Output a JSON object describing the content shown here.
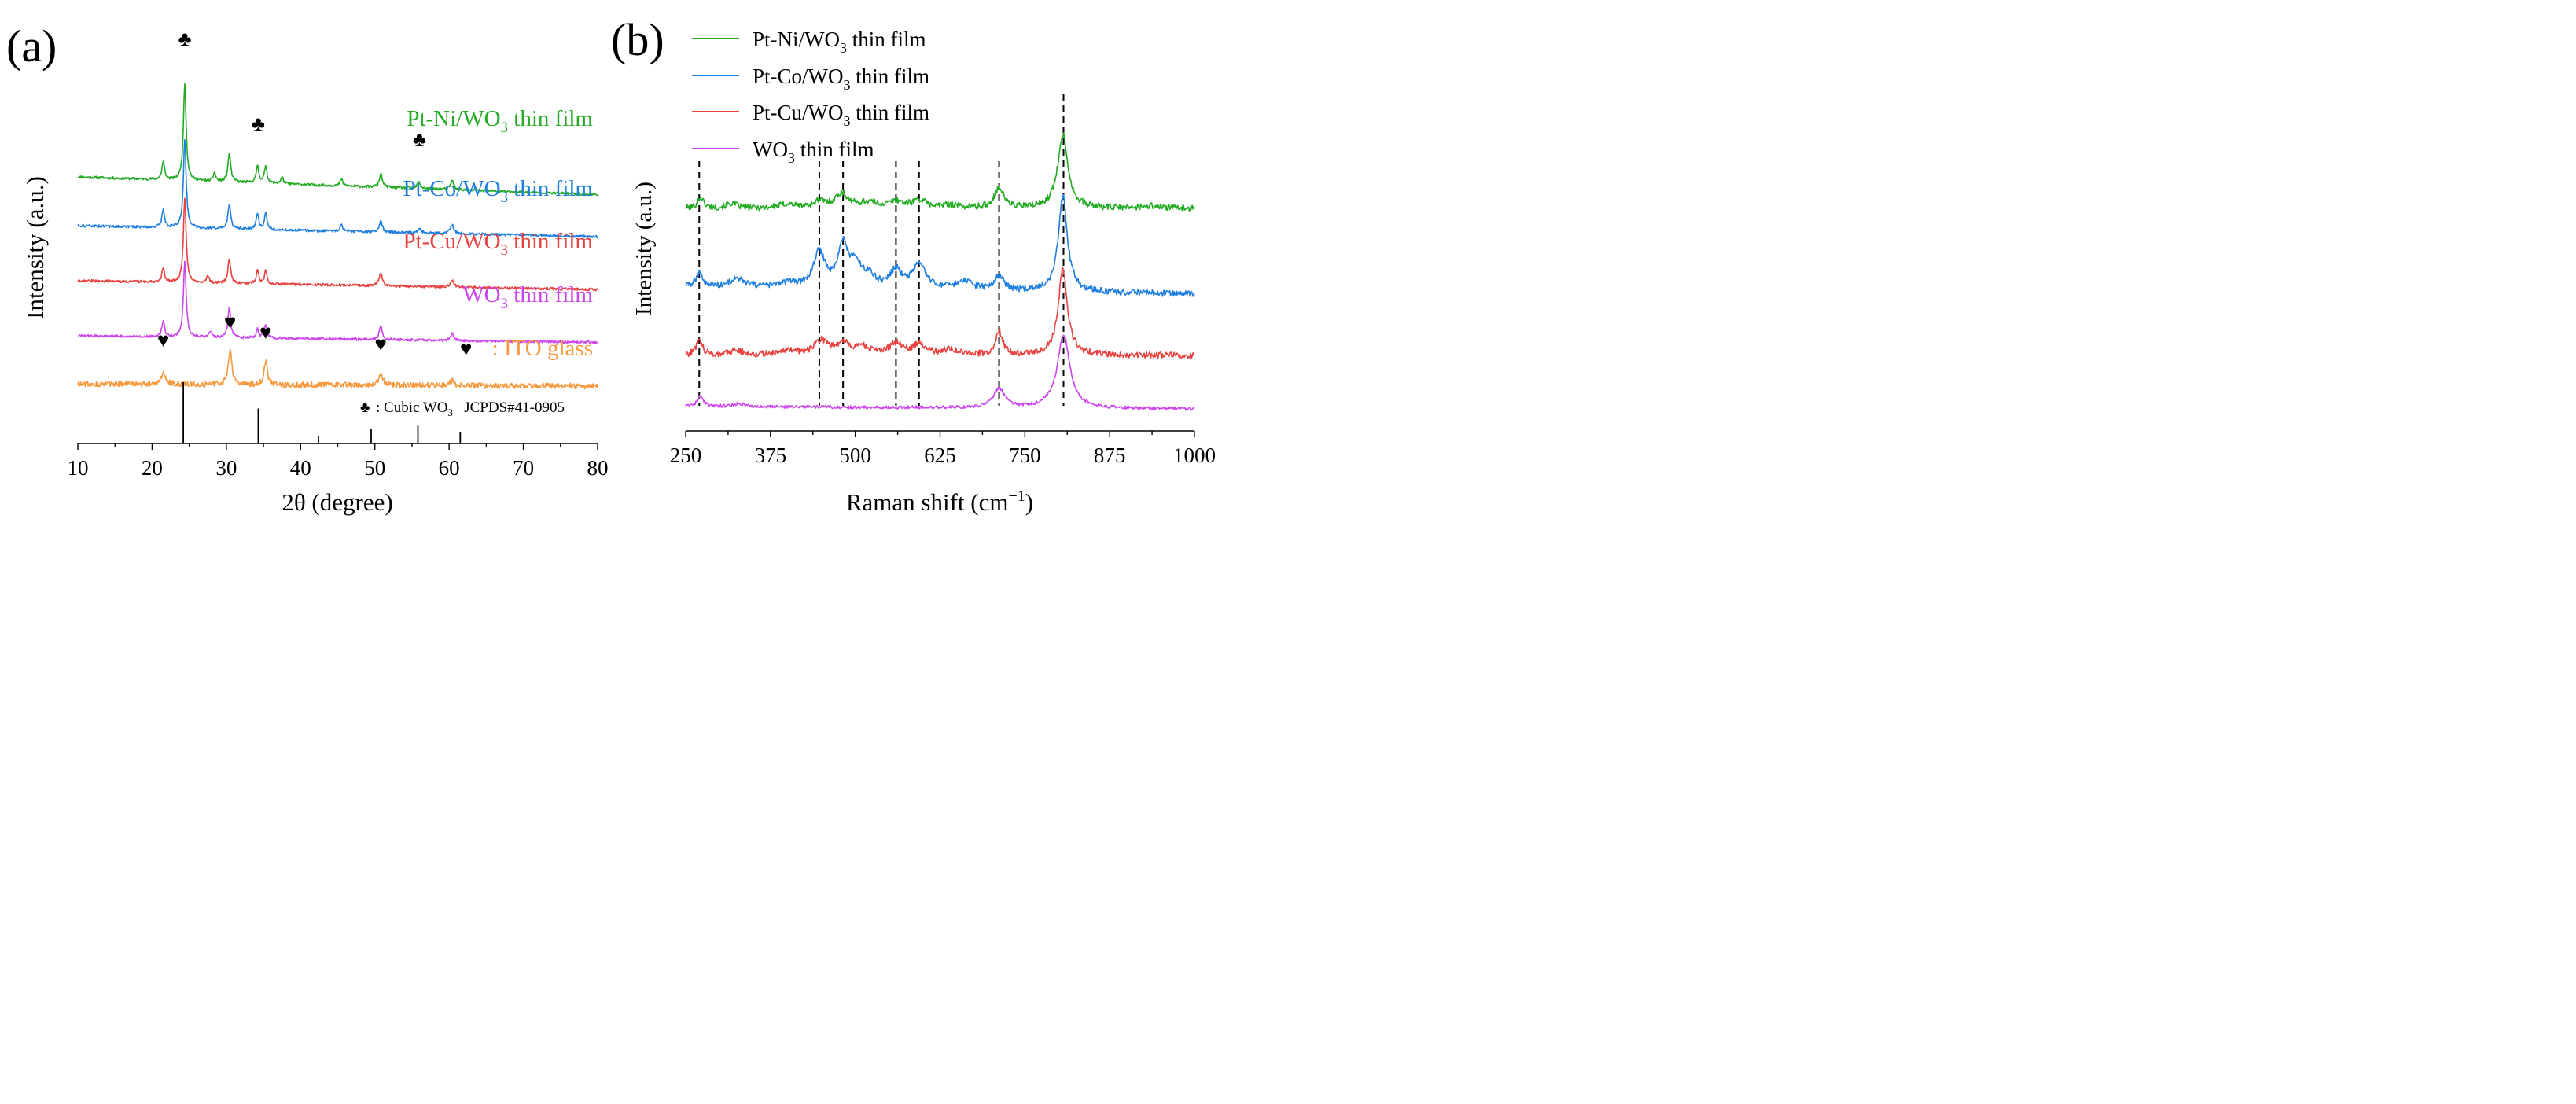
{
  "chart_data": [
    {
      "panel_label": "(a)",
      "type": "line",
      "xlabel": "2θ (degree)",
      "ylabel": "Intensity (a.u.)",
      "xlim": [
        10,
        80
      ],
      "xticks": [
        "10",
        "20",
        "30",
        "40",
        "50",
        "60",
        "70",
        "80"
      ],
      "series": [
        {
          "name": "Pt-Ni/WO3 thin film",
          "label_main": "Pt-Ni/WO",
          "label_sub": "3",
          "label_tail": " thin film",
          "color": "#22ab22",
          "offset": 4,
          "start": 62,
          "end": 54,
          "peaks": [
            [
              21.5,
              8,
              0.22
            ],
            [
              24.4,
              44,
              0.22
            ],
            [
              28.4,
              4,
              0.2
            ],
            [
              30.4,
              13,
              0.22
            ],
            [
              34.2,
              8,
              0.2
            ],
            [
              35.3,
              8,
              0.2
            ],
            [
              37.5,
              3,
              0.2
            ],
            [
              45.5,
              3,
              0.22
            ],
            [
              50.8,
              6,
              0.24
            ],
            [
              55.9,
              3,
              0.24
            ],
            [
              60.4,
              4,
              0.28
            ]
          ]
        },
        {
          "name": "Pt-Co/WO3 thin film",
          "label_main": "Pt-Co/WO",
          "label_sub": "3",
          "label_tail": " thin film",
          "color": "#1f7fe0",
          "offset": 3,
          "start": 61,
          "end": 56,
          "peaks": [
            [
              21.5,
              8,
              0.22
            ],
            [
              24.4,
              40,
              0.22
            ],
            [
              30.4,
              11,
              0.22
            ],
            [
              34.2,
              7,
              0.2
            ],
            [
              35.3,
              8,
              0.2
            ],
            [
              45.5,
              3,
              0.22
            ],
            [
              50.8,
              5,
              0.24
            ],
            [
              56.0,
              2,
              0.24
            ],
            [
              60.4,
              4,
              0.28
            ]
          ]
        },
        {
          "name": "Pt-Cu/WO3 thin film",
          "label_main": "Pt-Cu/WO",
          "label_sub": "3",
          "label_tail": " thin film",
          "color": "#e8423f",
          "offset": 2,
          "start": 59,
          "end": 55,
          "peaks": [
            [
              21.5,
              6,
              0.22
            ],
            [
              24.4,
              38,
              0.22
            ],
            [
              27.5,
              3,
              0.2
            ],
            [
              30.4,
              11,
              0.22
            ],
            [
              34.2,
              6,
              0.2
            ],
            [
              35.3,
              6,
              0.2
            ],
            [
              50.8,
              6,
              0.24
            ],
            [
              60.4,
              3,
              0.28
            ]
          ]
        },
        {
          "name": "WO3 thin film",
          "label_main": "WO",
          "label_sub": "3",
          "label_tail": " thin film",
          "color": "#cc44ee",
          "offset": 1,
          "start": 59,
          "end": 56,
          "peaks": [
            [
              21.5,
              7,
              0.22
            ],
            [
              24.4,
              34,
              0.22
            ],
            [
              27.9,
              3,
              0.2
            ],
            [
              30.4,
              14,
              0.22
            ],
            [
              34.2,
              4,
              0.2
            ],
            [
              35.3,
              6,
              0.2
            ],
            [
              50.8,
              6,
              0.24
            ],
            [
              60.4,
              3,
              0.28
            ]
          ]
        },
        {
          "name": "ITO glass",
          "label_main": "",
          "label_sub": "",
          "label_tail": ": ITO glass",
          "color": "#f6993f",
          "offset": 0,
          "start": 57,
          "end": 56,
          "peaks": [
            [
              21.5,
              5,
              0.3
            ],
            [
              30.5,
              14,
              0.28
            ],
            [
              35.3,
              10,
              0.24
            ],
            [
              50.8,
              5,
              0.3
            ],
            [
              60.4,
              2,
              0.3
            ]
          ]
        }
      ],
      "heart_markers": [
        21.5,
        30.5,
        35.3,
        50.8
      ],
      "club_markers": [
        24.4,
        34.3,
        56.0
      ],
      "reference": {
        "label_main": ": Cubic WO",
        "label_sub": "3",
        "label_tail": "   JCPDS#41-0905",
        "lines": [
          [
            24.2,
            100
          ],
          [
            34.3,
            57
          ],
          [
            42.4,
            12
          ],
          [
            49.5,
            24
          ],
          [
            55.8,
            29
          ],
          [
            61.5,
            19
          ]
        ]
      }
    },
    {
      "panel_label": "(b)",
      "type": "line",
      "xlabel_main": "Raman shift (cm",
      "xlabel_sup": "−1",
      "xlabel_tail": ")",
      "ylabel": "Intensity (a.u.)",
      "xlim": [
        250,
        1000
      ],
      "xticks": [
        "250",
        "375",
        "500",
        "625",
        "750",
        "875",
        "1000"
      ],
      "dashed_lines": [
        270,
        447,
        482,
        560,
        594,
        712,
        807
      ],
      "series": [
        {
          "name": "Pt-Ni/WO3 thin film",
          "label_main": "Pt-Ni/WO",
          "label_sub": "3",
          "label_tail": " thin film",
          "color": "#22ab22",
          "offset": 3,
          "start": 22,
          "end": 22,
          "peaks": [
            [
              272,
              14,
              5
            ],
            [
              318,
              6,
              9
            ],
            [
              400,
              5,
              15
            ],
            [
              447,
              8,
              10
            ],
            [
              480,
              18,
              12
            ],
            [
              520,
              7,
              15
            ],
            [
              560,
              8,
              12
            ],
            [
              594,
              10,
              12
            ],
            [
              640,
              4,
              15
            ],
            [
              712,
              26,
              8
            ],
            [
              806,
              94,
              9
            ],
            [
              935,
              3,
              15
            ]
          ]
        },
        {
          "name": "Pt-Co/WO3 thin film",
          "label_main": "Pt-Co/WO",
          "label_sub": "3",
          "label_tail": " thin film",
          "color": "#1f7fe0",
          "offset": 2,
          "start": 28,
          "end": 18,
          "peaks": [
            [
              270,
              18,
              5
            ],
            [
              325,
              10,
              12
            ],
            [
              400,
              5,
              15
            ],
            [
              447,
              44,
              10
            ],
            [
              482,
              52,
              9
            ],
            [
              500,
              25,
              10
            ],
            [
              520,
              14,
              12
            ],
            [
              560,
              22,
              10
            ],
            [
              594,
              30,
              12
            ],
            [
              660,
              10,
              15
            ],
            [
              712,
              18,
              8
            ],
            [
              806,
              122,
              8
            ]
          ]
        },
        {
          "name": "Pt-Cu/WO3 thin film",
          "label_main": "Pt-Cu/WO",
          "label_sub": "3",
          "label_tail": " thin film",
          "color": "#e8423f",
          "offset": 1,
          "start": 20,
          "end": 20,
          "peaks": [
            [
              270,
              22,
              5
            ],
            [
              325,
              6,
              12
            ],
            [
              400,
              6,
              15
            ],
            [
              450,
              18,
              12
            ],
            [
              482,
              14,
              12
            ],
            [
              510,
              10,
              12
            ],
            [
              560,
              14,
              12
            ],
            [
              594,
              14,
              10
            ],
            [
              640,
              7,
              15
            ],
            [
              712,
              30,
              6
            ],
            [
              806,
              110,
              8
            ]
          ]
        },
        {
          "name": "WO3 thin film",
          "label_main": "WO",
          "label_sub": "3",
          "label_tail": " thin film",
          "color": "#cc44ee",
          "offset": 0,
          "start": 14,
          "end": 11,
          "peaks": [
            [
              272,
              14,
              5
            ],
            [
              330,
              4,
              12
            ],
            [
              712,
              24,
              10
            ],
            [
              807,
              94,
              11
            ]
          ]
        }
      ]
    }
  ]
}
